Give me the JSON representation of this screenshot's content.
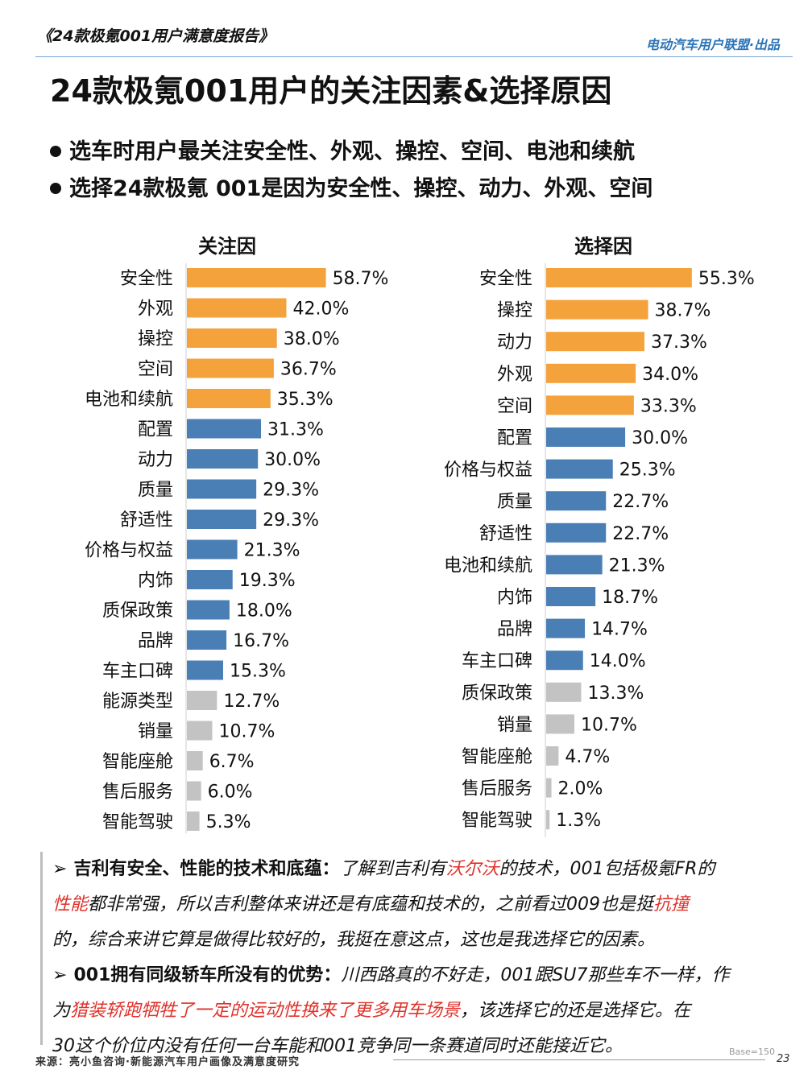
{
  "header": {
    "report_title": "《24款极氪001用户满意度报告》",
    "publisher": "电动汽车用户联盟·出品"
  },
  "page_title": "24款极氪001用户的关注因素&选择原因",
  "bullets": [
    "选车时用户最关注安全性、外观、操控、空间、电池和续航",
    "选择24款极氪 001是因为安全性、操控、动力、外观、空间"
  ],
  "colors": {
    "orange": "#f4a23c",
    "blue": "#4a7fb5",
    "gray": "#c3c3c3",
    "red_text": "#e0322b"
  },
  "chart_data": [
    {
      "type": "bar",
      "orientation": "horizontal",
      "title": "关注因",
      "unit": "%",
      "categories": [
        "安全性",
        "外观",
        "操控",
        "空间",
        "电池和续航",
        "配置",
        "动力",
        "质量",
        "舒适性",
        "价格与权益",
        "内饰",
        "质保政策",
        "品牌",
        "车主口碑",
        "能源类型",
        "销量",
        "智能座舱",
        "售后服务",
        "智能驾驶"
      ],
      "values": [
        58.7,
        42.0,
        38.0,
        36.7,
        35.3,
        31.3,
        30.0,
        29.3,
        29.3,
        21.3,
        19.3,
        18.0,
        16.7,
        15.3,
        12.7,
        10.7,
        6.7,
        6.0,
        5.3
      ],
      "labels": [
        "58.7%",
        "42.0%",
        "38.0%",
        "36.7%",
        "35.3%",
        "31.3%",
        "30.0%",
        "29.3%",
        "29.3%",
        "21.3%",
        "19.3%",
        "18.0%",
        "16.7%",
        "15.3%",
        "12.7%",
        "10.7%",
        "6.7%",
        "6.0%",
        "5.3%"
      ],
      "colors": [
        "orange",
        "orange",
        "orange",
        "orange",
        "orange",
        "blue",
        "blue",
        "blue",
        "blue",
        "blue",
        "blue",
        "blue",
        "blue",
        "blue",
        "gray",
        "gray",
        "gray",
        "gray",
        "gray"
      ]
    },
    {
      "type": "bar",
      "orientation": "horizontal",
      "title": "选择因",
      "unit": "%",
      "categories": [
        "安全性",
        "操控",
        "动力",
        "外观",
        "空间",
        "配置",
        "价格与权益",
        "质量",
        "舒适性",
        "电池和续航",
        "内饰",
        "品牌",
        "车主口碑",
        "质保政策",
        "销量",
        "智能座舱",
        "售后服务",
        "智能驾驶"
      ],
      "values": [
        55.3,
        38.7,
        37.3,
        34.0,
        33.3,
        30.0,
        25.3,
        22.7,
        22.7,
        21.3,
        18.7,
        14.7,
        14.0,
        13.3,
        10.7,
        4.7,
        2.0,
        1.3
      ],
      "labels": [
        "55.3%",
        "38.7%",
        "37.3%",
        "34.0%",
        "33.3%",
        "30.0%",
        "25.3%",
        "22.7%",
        "22.7%",
        "21.3%",
        "18.7%",
        "14.7%",
        "14.0%",
        "13.3%",
        "10.7%",
        "4.7%",
        "2.0%",
        "1.3%"
      ],
      "colors": [
        "orange",
        "orange",
        "orange",
        "orange",
        "orange",
        "blue",
        "blue",
        "blue",
        "blue",
        "blue",
        "blue",
        "blue",
        "blue",
        "gray",
        "gray",
        "gray",
        "gray",
        "gray"
      ]
    }
  ],
  "notes": [
    {
      "arrow": "➢",
      "lead": "吉利有安全、性能的技术和底蕴",
      "colon": "：",
      "line1_a": "了解到吉利有",
      "line1_red": "沃尔沃",
      "line1_b": "的技术，001包括极氪FR的",
      "line2_red": "性能",
      "line2_a": "都非常强，所以吉利整体来讲还是有底蕴和技术的，之前看过009也是挺",
      "line2_red2": "抗撞",
      "line3": "的，综合来讲它算是做得比较好的，我挺在意这点，这也是我选择它的因素。"
    },
    {
      "arrow": "➢",
      "lead": "001拥有同级轿车所没有的优势",
      "colon": "：",
      "line1_a": "川西路真的不好走，001跟SU7那些车不一样，作",
      "line2_a": "为",
      "line2_red": "猎装轿跑牺牲了一定的运动性换来了更多用车场景",
      "line2_b": "，该选择它的还是选择它。在",
      "line3": "30这个价位内没有任何一台车能和001竞争同一条赛道同时还能接近它。"
    }
  ],
  "footer": {
    "source": "来源：亮小鱼咨询·新能源汽车用户画像及满意度研究",
    "base": "Base=150",
    "page": "23"
  }
}
